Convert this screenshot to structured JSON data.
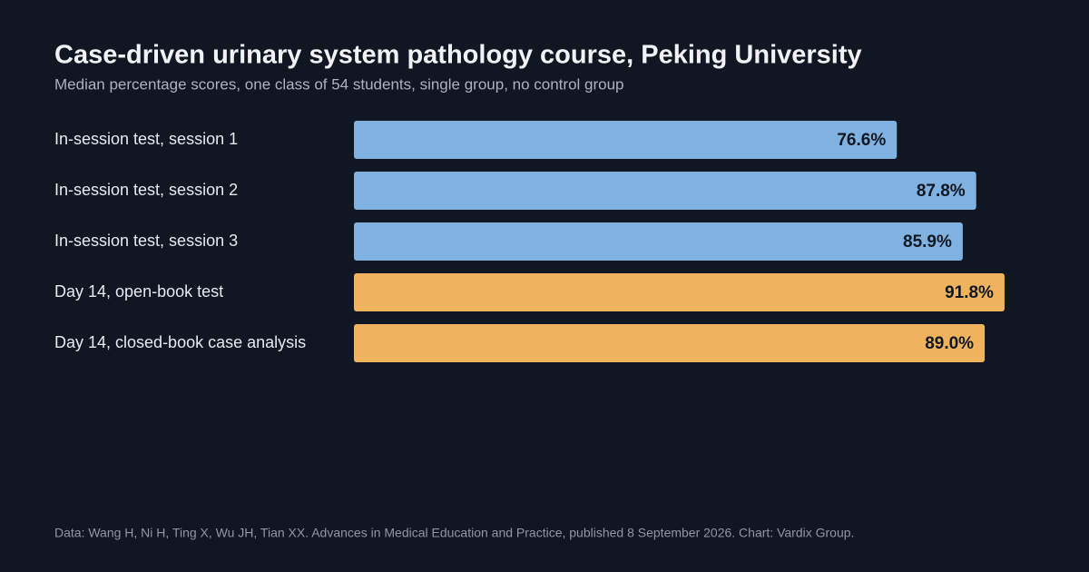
{
  "chart_data": {
    "type": "bar",
    "orientation": "horizontal",
    "title": "Case-driven urinary system pathology course, Peking University",
    "subtitle": "Median percentage scores, one class of 54 students, single group, no control group",
    "categories": [
      "In-session test, session 1",
      "In-session test, session 2",
      "In-session test, session 3",
      "Day 14, open-book test",
      "Day 14, closed-book case analysis"
    ],
    "values": [
      76.6,
      87.8,
      85.9,
      91.8,
      89.0
    ],
    "value_labels": [
      "76.6%",
      "87.8%",
      "85.9%",
      "91.8%",
      "89.0%"
    ],
    "colors": [
      "#7fb2e0",
      "#7fb2e0",
      "#7fb2e0",
      "#f0b35d",
      "#f0b35d"
    ],
    "xlim": [
      0,
      100
    ],
    "note": "Data: Wang H, Ni H, Ting X, Wu JH, Tian XX. Advances in Medical Education and Practice, published 8 September 2026. Chart: Vardix Group."
  }
}
